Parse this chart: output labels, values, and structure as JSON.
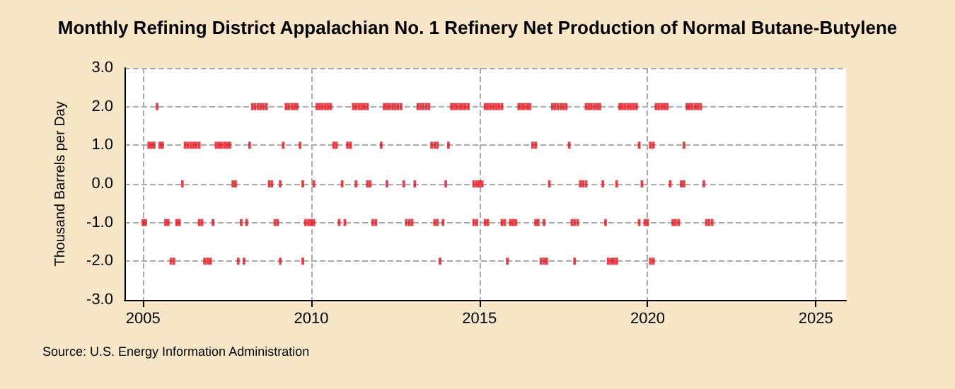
{
  "chart_data": {
    "type": "scatter",
    "title": "Monthly Refining District Appalachian No. 1 Refinery Net Production of Normal Butane-Butylene",
    "ylabel": "Thousand Barrels per Day",
    "annotations": [
      "Source: U.S. Energy Information Administration"
    ],
    "series": [
      {
        "color": "#e3101a",
        "x": [
          2005.42,
          2008.25,
          2008.33,
          2008.42,
          2008.5,
          2008.58,
          2008.67,
          2009.25,
          2009.33,
          2009.42,
          2009.5,
          2009.58,
          2010.17,
          2010.25,
          2010.33,
          2010.42,
          2010.5,
          2010.58,
          2011.25,
          2011.33,
          2011.42,
          2011.5,
          2011.58,
          2011.67,
          2012.17,
          2012.25,
          2012.33,
          2012.42,
          2012.5,
          2012.58,
          2012.67,
          2013.17,
          2013.25,
          2013.33,
          2013.42,
          2013.5,
          2014.17,
          2014.25,
          2014.33,
          2014.42,
          2014.5,
          2014.58,
          2014.67,
          2015.17,
          2015.25,
          2015.33,
          2015.42,
          2015.5,
          2015.58,
          2015.67,
          2016.17,
          2016.25,
          2016.33,
          2016.42,
          2016.5,
          2017.17,
          2017.25,
          2017.33,
          2017.42,
          2017.5,
          2017.58,
          2018.17,
          2018.25,
          2018.33,
          2018.42,
          2018.5,
          2018.58,
          2019.17,
          2019.25,
          2019.33,
          2019.42,
          2019.5,
          2019.58,
          2019.67,
          2020.25,
          2020.33,
          2020.42,
          2020.5,
          2020.58,
          2021.17,
          2021.25,
          2021.33,
          2021.42,
          2021.5,
          2021.58
        ],
        "values": [
          2,
          2,
          2,
          2,
          2,
          2,
          2,
          2,
          2,
          2,
          2,
          2,
          2,
          2,
          2,
          2,
          2,
          2,
          2,
          2,
          2,
          2,
          2,
          2,
          2,
          2,
          2,
          2,
          2,
          2,
          2,
          2,
          2,
          2,
          2,
          2,
          2,
          2,
          2,
          2,
          2,
          2,
          2,
          2,
          2,
          2,
          2,
          2,
          2,
          2,
          2,
          2,
          2,
          2,
          2,
          2,
          2,
          2,
          2,
          2,
          2,
          2,
          2,
          2,
          2,
          2,
          2,
          2,
          2,
          2,
          2,
          2,
          2,
          2,
          2,
          2,
          2,
          2,
          2,
          2,
          2,
          2,
          2,
          2,
          2
        ]
      },
      {
        "color": "#e3101a",
        "x": [
          2005.17,
          2005.25,
          2005.33,
          2005.5,
          2005.58,
          2006.25,
          2006.33,
          2006.42,
          2006.5,
          2006.58,
          2006.67,
          2007.17,
          2007.25,
          2007.33,
          2007.42,
          2007.5,
          2007.58,
          2008.17,
          2009.17,
          2009.67,
          2010.67,
          2010.75,
          2011.08,
          2011.17,
          2012.08,
          2013.58,
          2013.67,
          2013.75,
          2014.08,
          2016.58,
          2016.67,
          2017.67,
          2019.75,
          2020.08,
          2020.17,
          2021.08
        ],
        "values": [
          1,
          1,
          1,
          1,
          1,
          1,
          1,
          1,
          1,
          1,
          1,
          1,
          1,
          1,
          1,
          1,
          1,
          1,
          1,
          1,
          1,
          1,
          1,
          1,
          1,
          1,
          1,
          1,
          1,
          1,
          1,
          1,
          1,
          1,
          1,
          1
        ]
      },
      {
        "color": "#e3101a",
        "x": [
          2006.17,
          2007.67,
          2007.75,
          2008.75,
          2008.83,
          2009.08,
          2009.75,
          2010.08,
          2010.92,
          2011.33,
          2011.67,
          2011.75,
          2012.25,
          2012.75,
          2013.08,
          2014.0,
          2014.83,
          2014.92,
          2015.0,
          2015.08,
          2017.08,
          2018.0,
          2018.08,
          2018.17,
          2018.67,
          2019.08,
          2019.83,
          2020.67,
          2021.0,
          2021.08,
          2021.67
        ],
        "values": [
          0,
          0,
          0,
          0,
          0,
          0,
          0,
          0,
          0,
          0,
          0,
          0,
          0,
          0,
          0,
          0,
          0,
          0,
          0,
          0,
          0,
          0,
          0,
          0,
          0,
          0,
          0,
          0,
          0,
          0,
          0
        ]
      },
      {
        "color": "#e3101a",
        "x": [
          2005.0,
          2005.08,
          2005.67,
          2005.75,
          2006.0,
          2006.08,
          2006.67,
          2006.75,
          2007.08,
          2007.92,
          2008.08,
          2008.92,
          2009.0,
          2009.83,
          2009.92,
          2010.0,
          2010.08,
          2010.83,
          2011.0,
          2011.83,
          2011.92,
          2012.83,
          2012.92,
          2013.0,
          2013.67,
          2013.75,
          2013.92,
          2014.83,
          2014.92,
          2015.17,
          2015.25,
          2015.67,
          2015.75,
          2015.92,
          2016.0,
          2016.08,
          2016.67,
          2016.75,
          2016.92,
          2017.75,
          2017.83,
          2017.92,
          2018.75,
          2019.75,
          2019.92,
          2020.0,
          2020.75,
          2020.83,
          2020.92,
          2021.75,
          2021.83,
          2021.92
        ],
        "values": [
          -1,
          -1,
          -1,
          -1,
          -1,
          -1,
          -1,
          -1,
          -1,
          -1,
          -1,
          -1,
          -1,
          -1,
          -1,
          -1,
          -1,
          -1,
          -1,
          -1,
          -1,
          -1,
          -1,
          -1,
          -1,
          -1,
          -1,
          -1,
          -1,
          -1,
          -1,
          -1,
          -1,
          -1,
          -1,
          -1,
          -1,
          -1,
          -1,
          -1,
          -1,
          -1,
          -1,
          -1,
          -1,
          -1,
          -1,
          -1,
          -1,
          -1,
          -1,
          -1
        ]
      },
      {
        "color": "#e3101a",
        "x": [
          2005.83,
          2005.92,
          2006.83,
          2006.92,
          2007.0,
          2007.83,
          2008.0,
          2009.08,
          2009.75,
          2013.83,
          2015.83,
          2016.83,
          2016.92,
          2017.0,
          2017.83,
          2018.83,
          2018.92,
          2019.0,
          2019.08,
          2020.08,
          2020.17
        ],
        "values": [
          -2,
          -2,
          -2,
          -2,
          -2,
          -2,
          -2,
          -2,
          -2,
          -2,
          -2,
          -2,
          -2,
          -2,
          -2,
          -2,
          -2,
          -2,
          -2,
          -2,
          -2
        ]
      }
    ],
    "xlim": [
      2004.45,
      2025.9
    ],
    "xticks": [
      2005,
      2010,
      2015,
      2020,
      2025
    ],
    "ylim": [
      -3,
      3
    ],
    "yticks": [
      {
        "value": -3,
        "label": "-3.0"
      },
      {
        "value": -2,
        "label": "-2.0"
      },
      {
        "value": -1,
        "label": "-1.0"
      },
      {
        "value": 0,
        "label": "0.0"
      },
      {
        "value": 1,
        "label": "1.0"
      },
      {
        "value": 2,
        "label": "2.0"
      },
      {
        "value": 3,
        "label": "3.0"
      }
    ],
    "grid": true,
    "marker": "square"
  }
}
